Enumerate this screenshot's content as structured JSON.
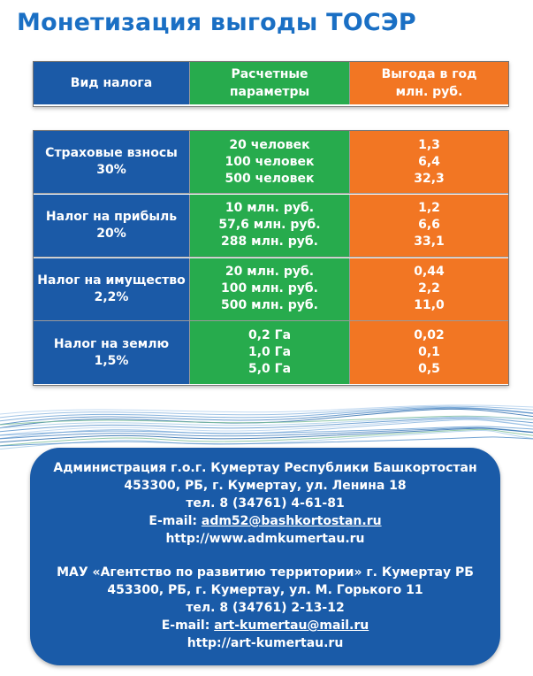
{
  "title": "Монетизация выгоды ТОСЭР",
  "table": {
    "headers": [
      "Вид налога",
      "Расчетные параметры",
      "Выгода в год млн. руб."
    ],
    "header_lines": [
      [
        "Вид налога"
      ],
      [
        "Расчетные",
        "параметры"
      ],
      [
        "Выгода в год",
        "млн. руб."
      ]
    ],
    "rows": [
      {
        "tax": [
          "Страховые взносы",
          "30%"
        ],
        "params": [
          "20 человек",
          "100 человек",
          "500 человек"
        ],
        "benefit": [
          "1,3",
          "6,4",
          "32,3"
        ]
      },
      {
        "tax": [
          "Налог на прибыль",
          "20%"
        ],
        "params": [
          "10 млн. руб.",
          "57,6 млн. руб.",
          "288 млн. руб."
        ],
        "benefit": [
          "1,2",
          "6,6",
          "33,1"
        ]
      },
      {
        "tax": [
          "Налог на имущество",
          "2,2%"
        ],
        "params": [
          "20 млн. руб.",
          "100 млн. руб.",
          "500 млн. руб."
        ],
        "benefit": [
          "0,44",
          "2,2",
          "11,0"
        ]
      },
      {
        "tax": [
          "Налог на землю",
          "1,5%"
        ],
        "params": [
          "0,2 Га",
          "1,0 Га",
          "5,0 Га"
        ],
        "benefit": [
          "0,02",
          "0,1",
          "0,5"
        ]
      }
    ]
  },
  "contacts": {
    "block1": {
      "org": "Администрация г.о.г. Кумертау Республики Башкортостан",
      "address": "453300, РБ, г. Кумертау, ул. Ленина 18",
      "phone": "тел. 8 (34761) 4-61-81",
      "email_label": "E-mail: ",
      "email": "adm52@bashkortostan.ru",
      "url": "http://www.admkumertau.ru"
    },
    "block2": {
      "org": "МАУ «Агентство по развитию территории» г. Кумертау РБ",
      "address": "453300, РБ, г. Кумертау, ул. М. Горького 11",
      "phone": "тел. 8 (34761) 2-13-12",
      "email_label": "E-mail: ",
      "email": "art-kumertau@mail.ru",
      "url": "http://art-kumertau.ru"
    }
  },
  "colors": {
    "title": "#1a6fc4",
    "tax_column": "#1b5aa7",
    "params_column": "#27ab4d",
    "benefit_column": "#f27623",
    "contact_box": "#1a5ba8"
  }
}
